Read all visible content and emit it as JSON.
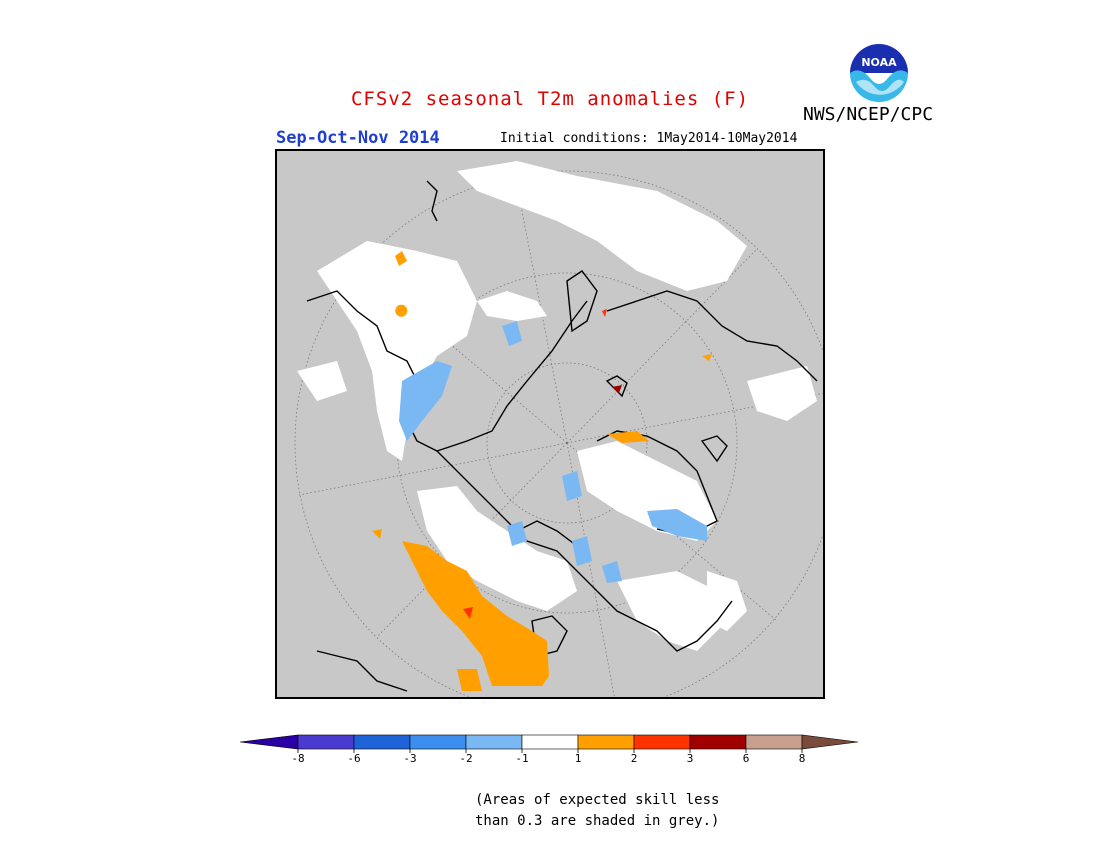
{
  "header": {
    "title": "CFSv2 seasonal T2m anomalies (F)",
    "season": "Sep-Oct-Nov 2014",
    "initial_conditions": "Initial conditions: 1May2014-10May2014",
    "agency": "NWS/NCEP/CPC",
    "logo_text": "NOAA"
  },
  "map": {
    "projection": "north polar stereographic",
    "grey_meaning": "low skill"
  },
  "legend": {
    "unit": "F",
    "ticks": [
      "-8",
      "-6",
      "-3",
      "-2",
      "-1",
      "1",
      "2",
      "3",
      "6",
      "8"
    ],
    "colors": [
      "#2a00a6",
      "#4a3ad0",
      "#1e64d8",
      "#3c8ef0",
      "#7ab8f4",
      "#ffffff",
      "#ffa000",
      "#ff3200",
      "#a00000",
      "#c8a090",
      "#7a4a3a"
    ]
  },
  "note": "(Areas of expected skill less\nthan 0.3 are shaded in grey.)"
}
